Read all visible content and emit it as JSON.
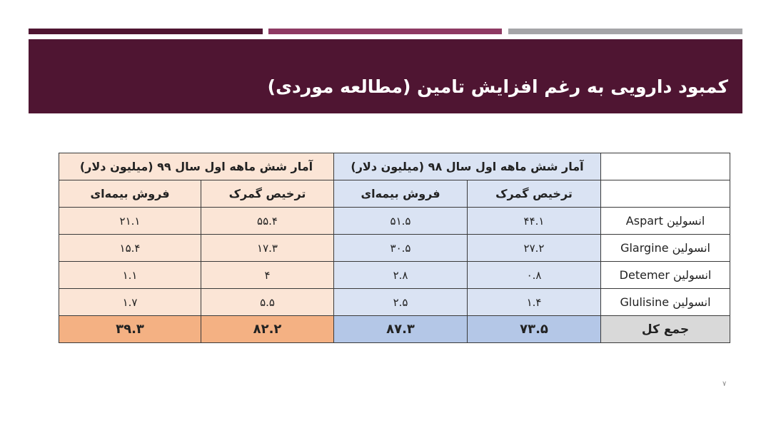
{
  "colors": {
    "bar1": "#4f1532",
    "bar2": "#8e3a63",
    "bar3": "#a5a5a8",
    "banner": "#4f1532",
    "blue": "#dae3f3",
    "blue_total": "#b4c7e7",
    "peach": "#fbe5d6",
    "peach_total": "#f4b183",
    "gray_total": "#d9d9d9"
  },
  "title": "کمبود دارویی به رغم افزایش تامین (مطالعه موردی)",
  "table": {
    "group_98": "آمار شش ماهه اول سال ۹۸ (میلیون دلار)",
    "group_99": "آمار شش ماهه اول سال ۹۹ (میلیون دلار)",
    "col_customs": "ترخیص گمرک",
    "col_insurance": "فروش بیمه‌ای",
    "rows": [
      {
        "label": "انسولین Aspart",
        "c98": "۴۴.۱",
        "i98": "۵۱.۵",
        "c99": "۵۵.۴",
        "i99": "۲۱.۱"
      },
      {
        "label": "انسولین Glargine",
        "c98": "۲۷.۲",
        "i98": "۳۰.۵",
        "c99": "۱۷.۳",
        "i99": "۱۵.۴"
      },
      {
        "label": "انسولین Detemer",
        "c98": "۰.۸",
        "i98": "۲.۸",
        "c99": "۴",
        "i99": "۱.۱"
      },
      {
        "label": "انسولین Glulisine",
        "c98": "۱.۴",
        "i98": "۲.۵",
        "c99": "۵.۵",
        "i99": "۱.۷"
      }
    ],
    "total": {
      "label": "جمع کل",
      "c98": "۷۳.۵",
      "i98": "۸۷.۳",
      "c99": "۸۲.۲",
      "i99": "۳۹.۳"
    }
  },
  "page_number": "۷"
}
